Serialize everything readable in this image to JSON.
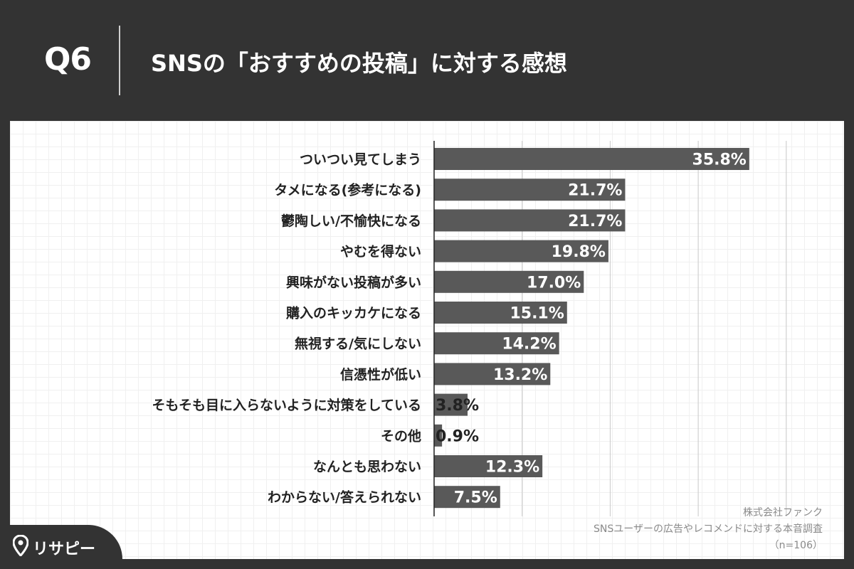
{
  "header": {
    "question": "Q6",
    "title": "SNSの「おすすめの投稿」に対する感想"
  },
  "chart_data": {
    "type": "bar",
    "orientation": "horizontal",
    "categories": [
      "ついつい見てしまう",
      "タメになる(参考になる)",
      "鬱陶しい/不愉快になる",
      "やむを得ない",
      "興味がない投稿が多い",
      "購入のキッカケになる",
      "無視する/気にしない",
      "信憑性が低い",
      "そもそも目に入らないように対策をしている",
      "その他",
      "なんとも思わない",
      "わからない/答えられない"
    ],
    "values": [
      35.8,
      21.7,
      21.7,
      19.8,
      17.0,
      15.1,
      14.2,
      13.2,
      3.8,
      0.9,
      12.3,
      7.5
    ],
    "labels": [
      "35.8%",
      "21.7%",
      "21.7%",
      "19.8%",
      "17.0%",
      "15.1%",
      "14.2%",
      "13.2%",
      "3.8%",
      "0.9%",
      "12.3%",
      "7.5%"
    ],
    "xlim": [
      0,
      40
    ],
    "grid": true,
    "bar_color": "#595959"
  },
  "source": {
    "company": "株式会社ファンク",
    "survey": "SNSユーザーの広告やレコメンドに対する本音調査",
    "sample": "（n=106）"
  },
  "logo": {
    "text": "リサピー",
    "icon": "location-pin-icon"
  }
}
